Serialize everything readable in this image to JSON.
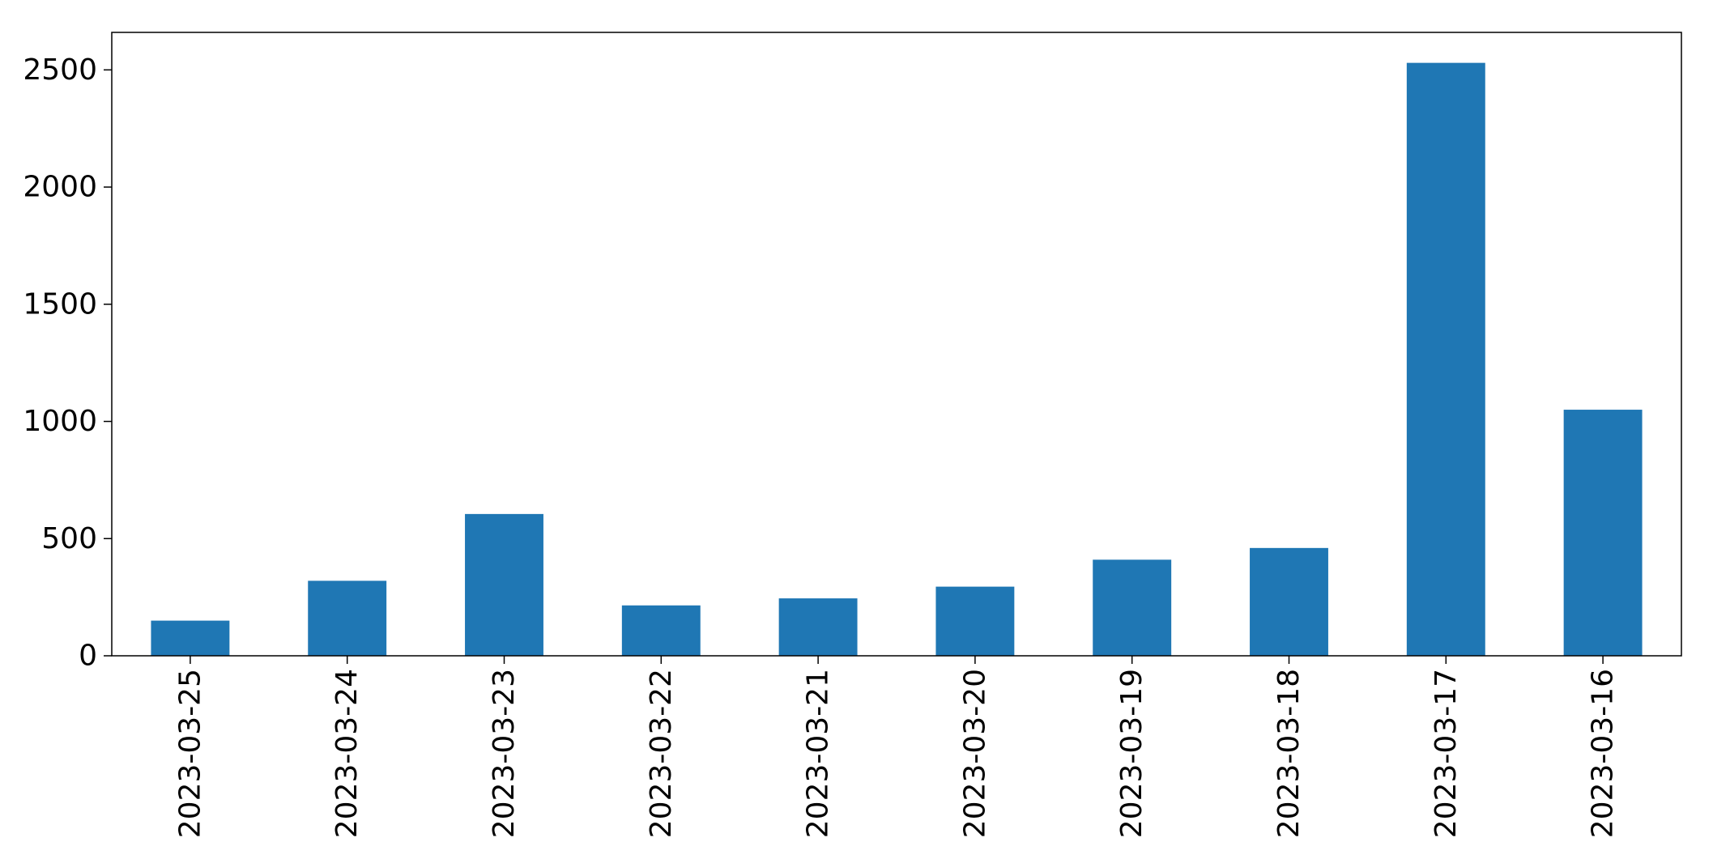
{
  "chart_data": {
    "type": "bar",
    "categories": [
      "2023-03-25",
      "2023-03-24",
      "2023-03-23",
      "2023-03-22",
      "2023-03-21",
      "2023-03-20",
      "2023-03-19",
      "2023-03-18",
      "2023-03-17",
      "2023-03-16"
    ],
    "values": [
      150,
      320,
      605,
      215,
      245,
      295,
      410,
      460,
      2530,
      1050
    ],
    "title": "",
    "xlabel": "",
    "ylabel": "",
    "ylim": [
      0,
      2660
    ],
    "yticks": [
      0,
      500,
      1000,
      1500,
      2000,
      2500
    ],
    "grid": false,
    "legend": "none",
    "colors": {
      "bar": "#1f77b4",
      "axis": "#000000",
      "background": "#ffffff"
    }
  }
}
